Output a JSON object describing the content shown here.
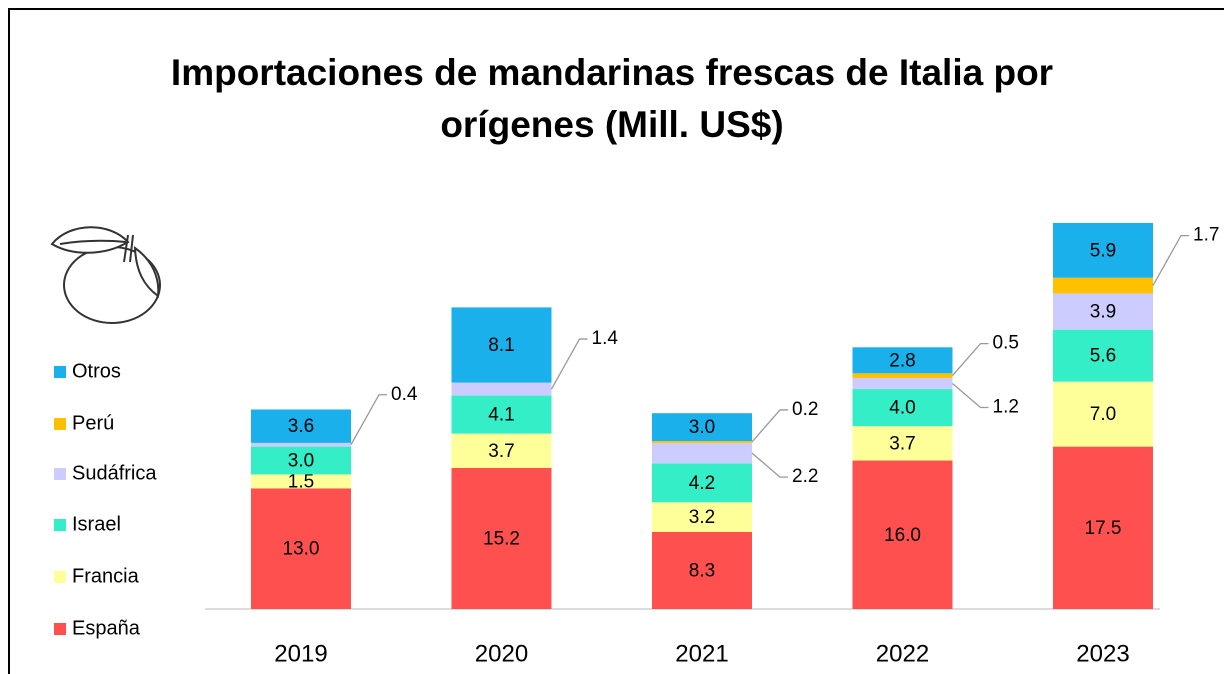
{
  "chart_data": {
    "type": "bar",
    "stacked": true,
    "title": "Importaciones de mandarinas frescas de Italia por orígenes (Mill. US$)",
    "categories": [
      "2019",
      "2020",
      "2021",
      "2022",
      "2023"
    ],
    "series": [
      {
        "name": "España",
        "color": "#ff5050",
        "values": [
          13.0,
          15.2,
          8.3,
          16.0,
          17.5
        ],
        "value_labels": [
          "13.0",
          "15.2",
          "8.3",
          "16.0",
          "17.5"
        ]
      },
      {
        "name": "Francia",
        "color": "#ffff99",
        "values": [
          1.5,
          3.7,
          3.2,
          3.7,
          7.0
        ],
        "value_labels": [
          "1.5",
          "3.7",
          "3.2",
          "3.7",
          "7.0"
        ]
      },
      {
        "name": "Israel",
        "color": "#33eec6",
        "values": [
          3.0,
          4.1,
          4.2,
          4.0,
          5.6
        ],
        "value_labels": [
          "3.0",
          "4.1",
          "4.2",
          "4.0",
          "5.6"
        ]
      },
      {
        "name": "Sudáfrica",
        "color": "#ccccff",
        "values": [
          0.4,
          1.4,
          2.2,
          1.2,
          3.9
        ],
        "value_labels": [
          "0.4",
          "1.4",
          "2.2",
          "1.2",
          "3.9"
        ]
      },
      {
        "name": "Perú",
        "color": "#ffc000",
        "values": [
          null,
          null,
          0.2,
          0.5,
          1.7
        ],
        "value_labels": [
          null,
          null,
          "0.2",
          "0.5",
          "1.7"
        ]
      },
      {
        "name": "Otros",
        "color": "#1ab0ec",
        "values": [
          3.6,
          8.1,
          3.0,
          2.8,
          5.9
        ],
        "value_labels": [
          "3.6",
          "8.1",
          "3.0",
          "2.8",
          "5.9"
        ]
      }
    ]
  }
}
